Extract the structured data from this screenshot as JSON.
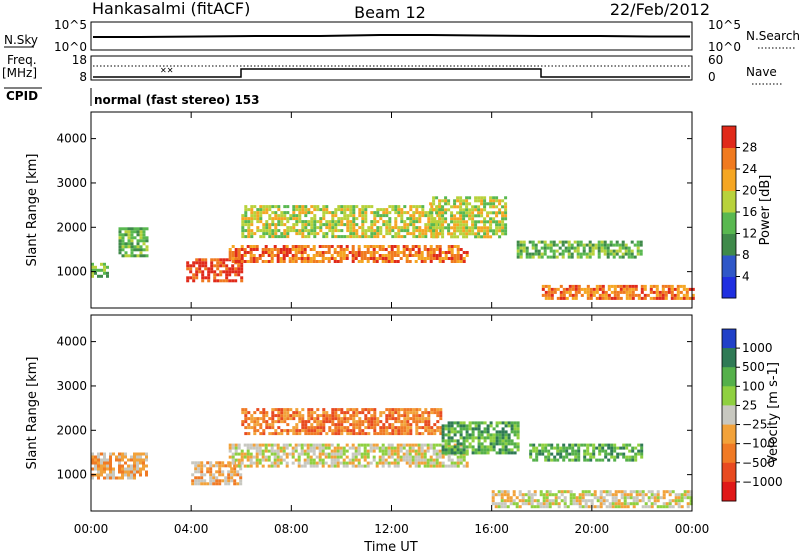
{
  "header": {
    "station": "Hankasalmi (fitACF)",
    "beam": "Beam 12",
    "date": "22/Feb/2012"
  },
  "top_panels": {
    "nsky": {
      "label": "N.Sky",
      "ticks_left": [
        "10^5",
        "10^0"
      ],
      "ticks_right": [
        "10^5",
        "10^0"
      ],
      "right_label": "N.Search"
    },
    "freq": {
      "label_top": "Freq.",
      "label_unit": "[MHz]",
      "ticks_left": [
        "18",
        "8"
      ],
      "ticks_right": [
        "60",
        "0"
      ],
      "right_label": "Nave"
    },
    "cpid": {
      "label": "CPID",
      "value": "normal (fast stereo) 153"
    }
  },
  "chart_data": [
    {
      "type": "heatmap",
      "title": "",
      "ylabel": "Slant Range [km]",
      "ylim": [
        180,
        4600
      ],
      "yticks": [
        "1000",
        "2000",
        "3000",
        "4000"
      ],
      "colorbar": {
        "label": "Power [dB]",
        "ticks": [
          "4",
          "8",
          "12",
          "16",
          "20",
          "24",
          "28"
        ],
        "colors": [
          "#1f2fe0",
          "#2f57c8",
          "#3f8a4a",
          "#59b850",
          "#b8d23c",
          "#f5a623",
          "#f07a1f",
          "#e02a1a"
        ]
      },
      "regions": [
        {
          "t_start": 0.0,
          "t_end": 0.6,
          "r_start": 900,
          "r_end": 1200,
          "level": 3
        },
        {
          "t_start": 1.1,
          "t_end": 2.2,
          "r_start": 1350,
          "r_end": 2000,
          "level": 3
        },
        {
          "t_start": 3.8,
          "t_end": 6.0,
          "r_start": 800,
          "r_end": 1300,
          "level": 7
        },
        {
          "t_start": 5.5,
          "t_end": 15.0,
          "r_start": 1200,
          "r_end": 1600,
          "level": 6
        },
        {
          "t_start": 6.0,
          "t_end": 14.0,
          "r_start": 1800,
          "r_end": 2500,
          "level": 4
        },
        {
          "t_start": 13.5,
          "t_end": 16.5,
          "r_start": 1800,
          "r_end": 2700,
          "level": 4
        },
        {
          "t_start": 17.0,
          "t_end": 22.0,
          "r_start": 1300,
          "r_end": 1700,
          "level": 3
        },
        {
          "t_start": 18.0,
          "t_end": 24.0,
          "r_start": 400,
          "r_end": 700,
          "level": 6
        }
      ]
    },
    {
      "type": "heatmap",
      "title": "",
      "xlabel": "Time UT",
      "ylabel": "Slant Range [km]",
      "ylim": [
        180,
        4600
      ],
      "xlim": [
        0,
        24
      ],
      "xticks": [
        "00:00",
        "04:00",
        "08:00",
        "12:00",
        "16:00",
        "20:00",
        "00:00"
      ],
      "yticks": [
        "1000",
        "2000",
        "3000",
        "4000"
      ],
      "colorbar": {
        "label": "Velocity [m s-1]",
        "ticks": [
          "1000",
          "500",
          "100",
          "25",
          "−25",
          "−100",
          "−500",
          "−1000"
        ],
        "colors": [
          "#2040c8",
          "#2f7a55",
          "#55b04a",
          "#8fd040",
          "#c8c8c0",
          "#f2a23a",
          "#f07a25",
          "#e84a20",
          "#e01818"
        ]
      },
      "regions": [
        {
          "t_start": 0.0,
          "t_end": 2.2,
          "r_start": 900,
          "r_end": 1500,
          "level": 5
        },
        {
          "t_start": 4.0,
          "t_end": 6.0,
          "r_start": 800,
          "r_end": 1300,
          "level": 5
        },
        {
          "t_start": 5.5,
          "t_end": 15.0,
          "r_start": 1200,
          "r_end": 1700,
          "level": 4
        },
        {
          "t_start": 6.0,
          "t_end": 14.0,
          "r_start": 1900,
          "r_end": 2500,
          "level": 6
        },
        {
          "t_start": 14.0,
          "t_end": 17.0,
          "r_start": 1500,
          "r_end": 2200,
          "level": 2
        },
        {
          "t_start": 17.5,
          "t_end": 22.0,
          "r_start": 1300,
          "r_end": 1700,
          "level": 2
        },
        {
          "t_start": 16.0,
          "t_end": 24.0,
          "r_start": 300,
          "r_end": 650,
          "level": 4
        }
      ]
    }
  ]
}
